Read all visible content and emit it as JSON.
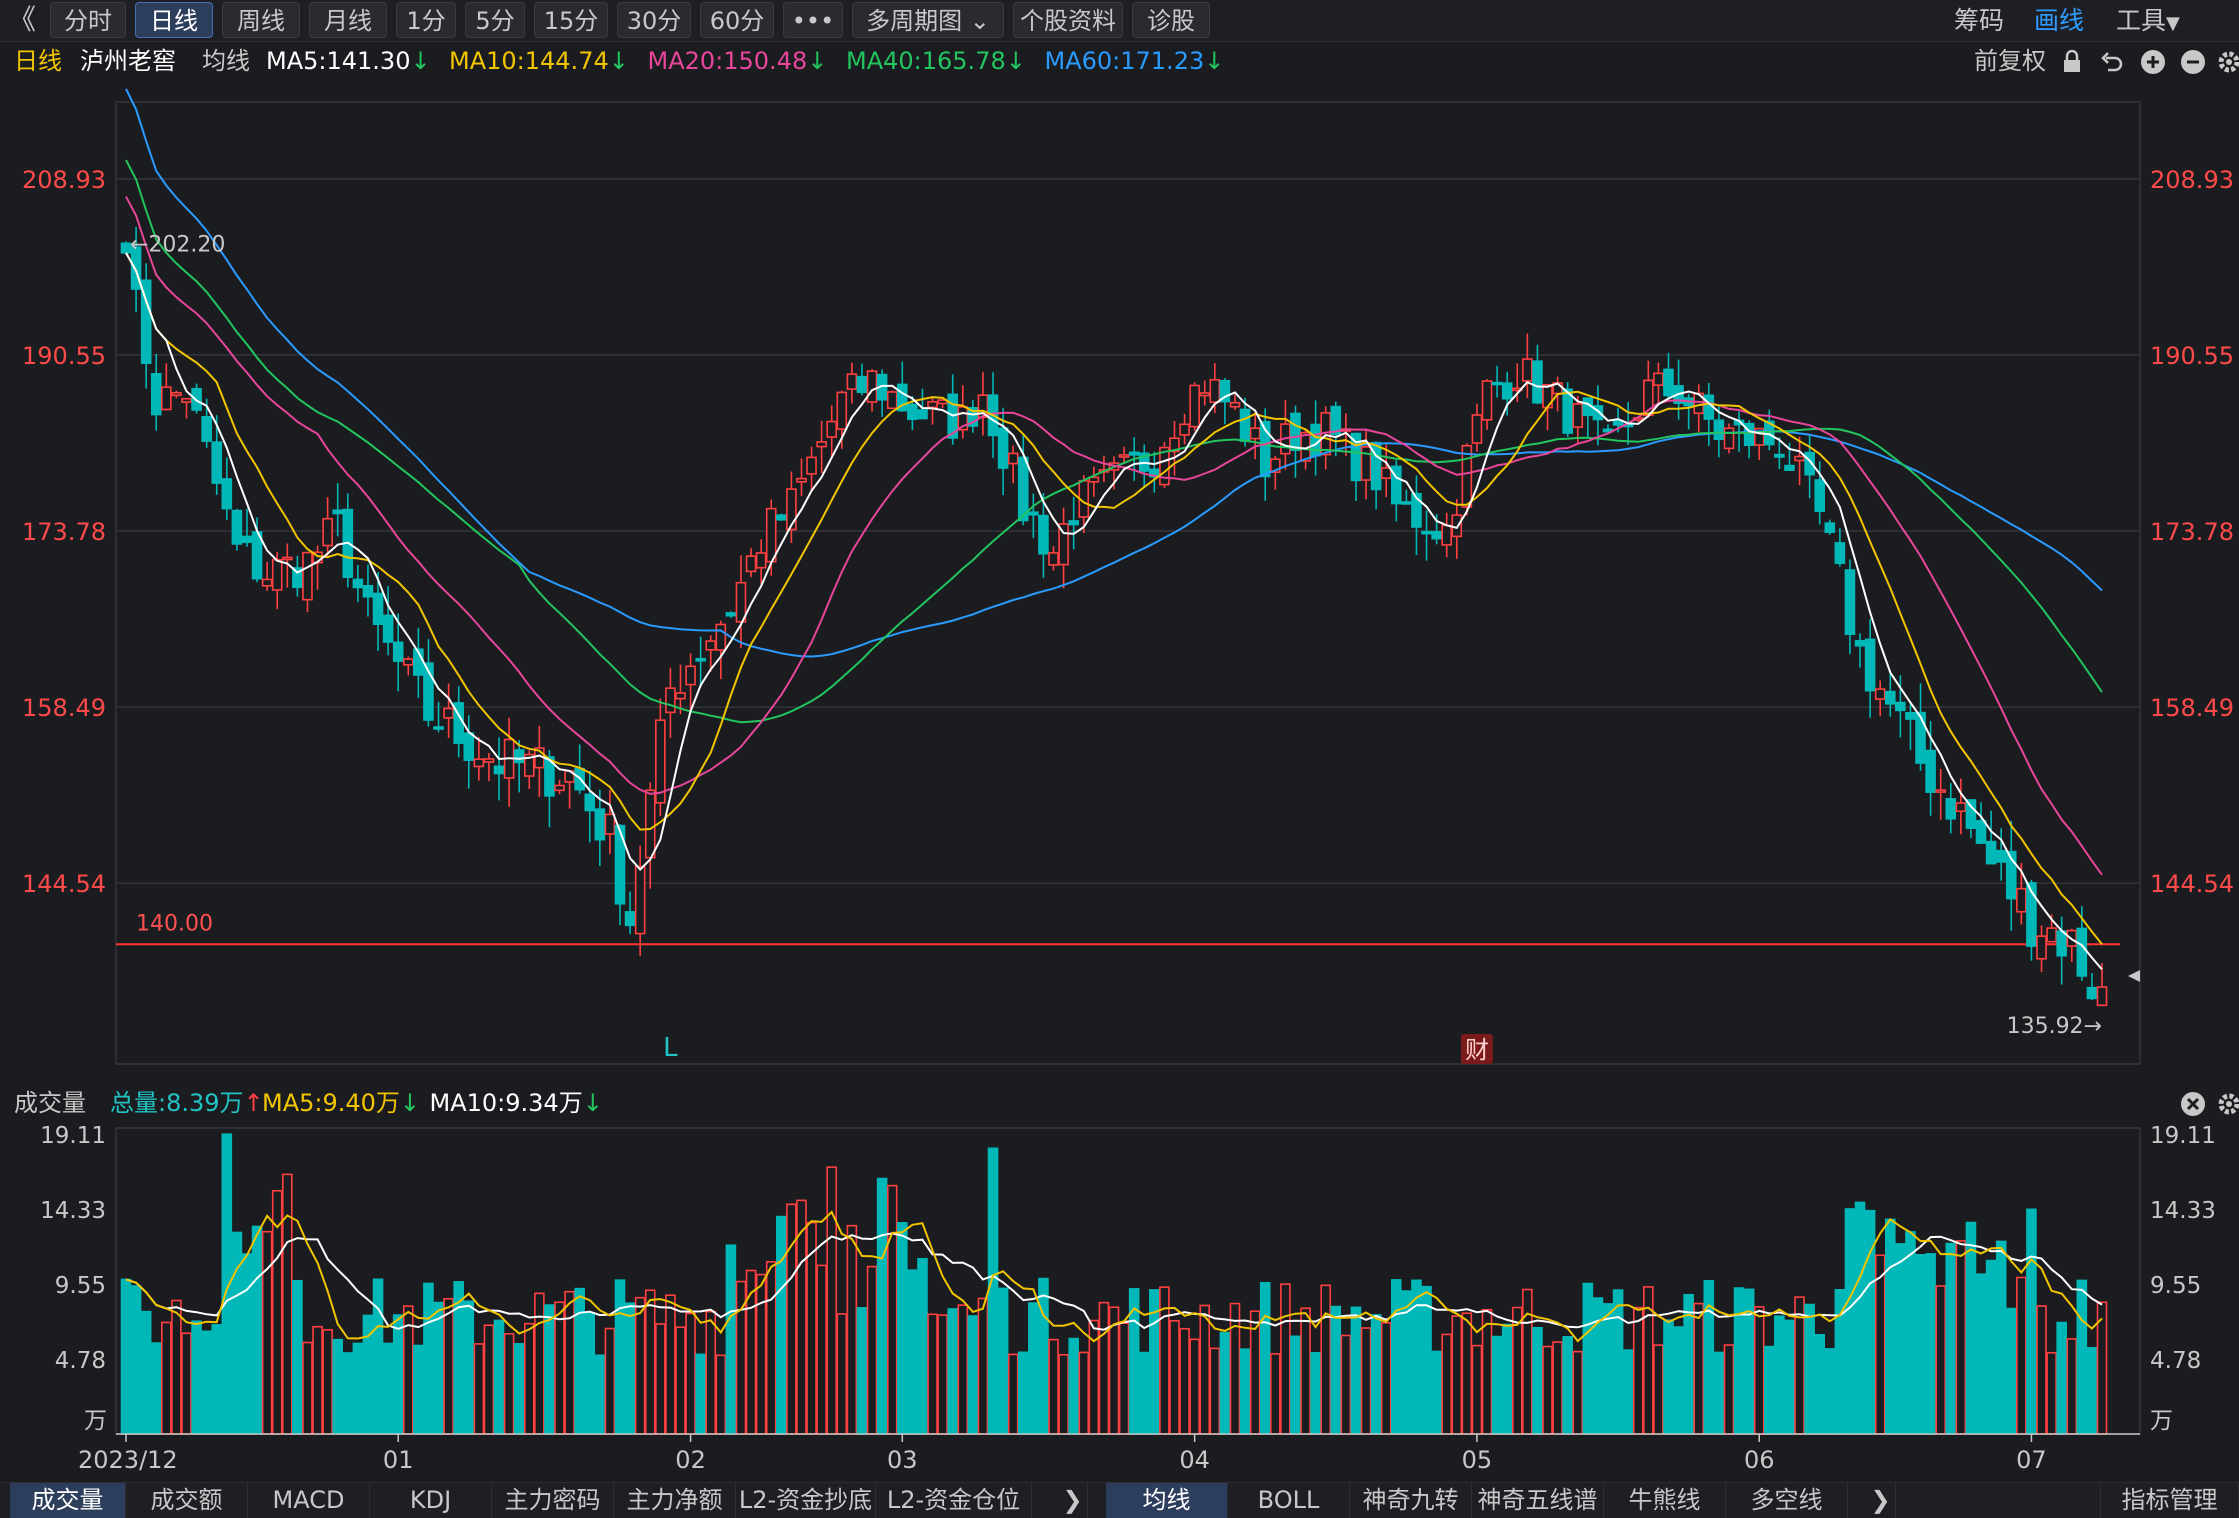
{
  "toolbar": {
    "back_glyph": "《",
    "tabs": [
      "分时",
      "日线",
      "周线",
      "月线",
      "1分",
      "5分",
      "15分",
      "30分",
      "60分",
      "•••",
      "多周期图",
      "个股资料",
      "诊股"
    ],
    "active_tab": "日线",
    "right_items": [
      "筹码",
      "画线",
      "工具"
    ]
  },
  "header": {
    "period": "日线",
    "stock_name": "泸州老窖",
    "ma_title": "均线",
    "ma_items": [
      {
        "text": "MA5:141.30",
        "color": "#ffffff",
        "arrow": "down"
      },
      {
        "text": "MA10:144.74",
        "color": "#f2c500",
        "arrow": "down"
      },
      {
        "text": "MA20:150.48",
        "color": "#e8469a",
        "arrow": "down"
      },
      {
        "text": "MA40:165.78",
        "color": "#22c55e",
        "arrow": "down"
      },
      {
        "text": "MA60:171.23",
        "color": "#2a9bff",
        "arrow": "down"
      }
    ],
    "adjust": "前复权",
    "icons": [
      "lock-icon",
      "undo-icon",
      "zoom-in-icon",
      "zoom-out-icon",
      "settings-icon"
    ]
  },
  "volume_header": {
    "title": "成交量",
    "items": [
      {
        "text": "总量:8.39万",
        "color": "#22c3c3",
        "arrow": "up"
      },
      {
        "text": "MA5:9.40万",
        "color": "#f2c500",
        "arrow": "down"
      },
      {
        "text": "MA10:9.34万",
        "color": "#ffffff",
        "arrow": "down"
      }
    ]
  },
  "bottom_tabs": {
    "left": [
      "成交量",
      "成交额",
      "MACD",
      "KDJ",
      "主力密码",
      "主力净额",
      "L2-资金抄底",
      "L2-资金仓位"
    ],
    "left_active": "成交量",
    "right": [
      "均线",
      "BOLL",
      "神奇九转",
      "神奇五线谱",
      "牛熊线",
      "多空线"
    ],
    "right_active": "均线",
    "manage": "指标管理",
    "arrow_glyph": "❯"
  },
  "colors": {
    "up": "#ff4040",
    "down": "#00b8b8",
    "ma5": "#ffffff",
    "ma10": "#f2c500",
    "ma20": "#e8469a",
    "ma40": "#22c55e",
    "ma60": "#2a9bff",
    "line140": "#ff3333"
  },
  "chart_data": [
    {
      "type": "candlestick",
      "title": "泸州老窖 日线",
      "y_ticks": [
        "208.93",
        "190.55",
        "173.78",
        "158.49",
        "144.54"
      ],
      "y_tick_values": [
        208.93,
        190.55,
        173.78,
        158.49,
        144.54
      ],
      "ylim": [
        131.5,
        217.5
      ],
      "x_tick_labels": [
        "2023/12",
        "01",
        "02",
        "03",
        "04",
        "05",
        "06",
        "07"
      ],
      "x_tick_index": [
        0,
        27,
        56,
        77,
        106,
        134,
        162,
        189
      ],
      "scale": "log",
      "grid": true,
      "horizontal_line": {
        "value": 140.0,
        "label": "140.00"
      },
      "annotations": {
        "high": "202.20",
        "low": "135.92",
        "markers": [
          "L",
          "财"
        ]
      },
      "n_days": 197
    },
    {
      "type": "bar",
      "title": "成交量",
      "unit": "万",
      "y_ticks": [
        "19.11",
        "14.33",
        "9.55",
        "4.78"
      ],
      "y_tick_values": [
        19.11,
        14.33,
        9.55,
        4.78
      ],
      "ylim": [
        0,
        19.11
      ],
      "series_names": [
        "VOL",
        "MA5",
        "MA10"
      ]
    }
  ]
}
